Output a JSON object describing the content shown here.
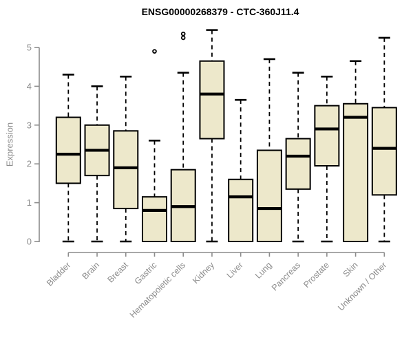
{
  "chart_data": {
    "type": "boxplot",
    "title": "ENSG00000268379 - CTC-360J11.4",
    "ylabel": "Expression",
    "xlabel": "",
    "y_ticks": [
      0,
      1,
      2,
      3,
      4,
      5
    ],
    "ylim": [
      0,
      5.5
    ],
    "grid": false,
    "legend": "none",
    "box_fill": "#EDE8CB",
    "box_stroke": "#000000",
    "median_color": "#000000",
    "whisker_color": "#000000",
    "axis_color": "#8C8C8C",
    "label_color": "#8C8C8C",
    "title_color": "#000000",
    "categories": [
      "Bladder",
      "Brain",
      "Breast",
      "Gastric",
      "Hematopoietic cells",
      "Kidney",
      "Liver",
      "Lung",
      "Pancreas",
      "Prostate",
      "Skin",
      "Unknown / Other"
    ],
    "series": [
      {
        "category": "Bladder",
        "whisker_low": 0,
        "q1": 1.5,
        "median": 2.25,
        "q3": 3.2,
        "whisker_high": 4.3,
        "outliers": []
      },
      {
        "category": "Brain",
        "whisker_low": 0,
        "q1": 1.7,
        "median": 2.35,
        "q3": 3.0,
        "whisker_high": 4.0,
        "outliers": []
      },
      {
        "category": "Breast",
        "whisker_low": 0,
        "q1": 0.85,
        "median": 1.9,
        "q3": 2.85,
        "whisker_high": 4.25,
        "outliers": []
      },
      {
        "category": "Gastric",
        "whisker_low": 0,
        "q1": 0,
        "median": 0.8,
        "q3": 1.15,
        "whisker_high": 2.6,
        "outliers": [
          4.9
        ]
      },
      {
        "category": "Hematopoietic cells",
        "whisker_low": 0,
        "q1": 0,
        "median": 0.9,
        "q3": 1.85,
        "whisker_high": 4.35,
        "outliers": [
          5.25,
          5.35
        ]
      },
      {
        "category": "Kidney",
        "whisker_low": 0,
        "q1": 2.65,
        "median": 3.8,
        "q3": 4.65,
        "whisker_high": 5.45,
        "outliers": []
      },
      {
        "category": "Liver",
        "whisker_low": 0,
        "q1": 0,
        "median": 1.15,
        "q3": 1.6,
        "whisker_high": 3.65,
        "outliers": []
      },
      {
        "category": "Lung",
        "whisker_low": 0,
        "q1": 0,
        "median": 0.85,
        "q3": 2.35,
        "whisker_high": 4.7,
        "outliers": []
      },
      {
        "category": "Pancreas",
        "whisker_low": 0,
        "q1": 1.35,
        "median": 2.2,
        "q3": 2.65,
        "whisker_high": 4.35,
        "outliers": []
      },
      {
        "category": "Prostate",
        "whisker_low": 0,
        "q1": 1.95,
        "median": 2.9,
        "q3": 3.5,
        "whisker_high": 4.25,
        "outliers": []
      },
      {
        "category": "Skin",
        "whisker_low": 0,
        "q1": 0,
        "median": 3.2,
        "q3": 3.55,
        "whisker_high": 4.65,
        "outliers": []
      },
      {
        "category": "Unknown / Other",
        "whisker_low": 0,
        "q1": 1.2,
        "median": 2.4,
        "q3": 3.45,
        "whisker_high": 5.25,
        "outliers": []
      }
    ]
  }
}
